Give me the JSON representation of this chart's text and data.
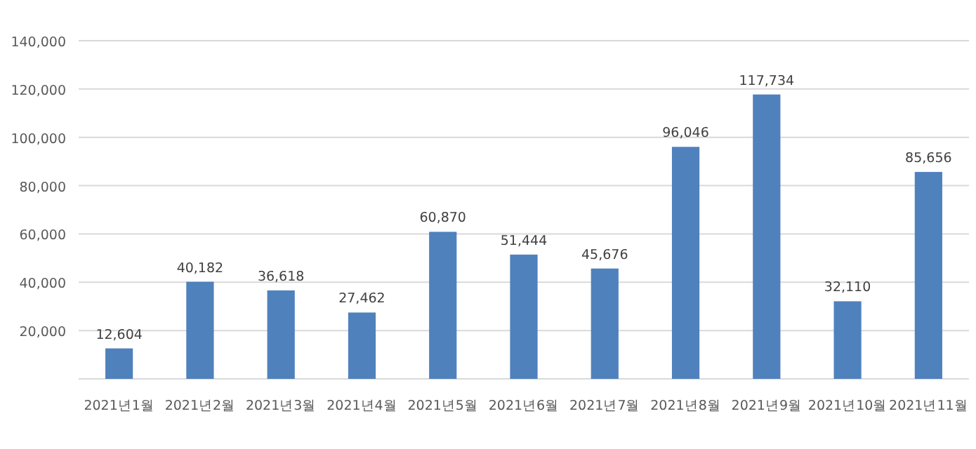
{
  "chart_data": {
    "type": "bar",
    "categories": [
      "2021년1월",
      "2021년2월",
      "2021년3월",
      "2021년4월",
      "2021년5월",
      "2021년6월",
      "2021년7월",
      "2021년8월",
      "2021년9월",
      "2021년10월",
      "2021년11월"
    ],
    "values": [
      12604,
      40182,
      36618,
      27462,
      60870,
      51444,
      45676,
      96046,
      117734,
      32110,
      85656
    ],
    "value_labels": [
      "12,604",
      "40,182",
      "36,618",
      "27,462",
      "60,870",
      "51,444",
      "45,676",
      "96,046",
      "117,734",
      "32,110",
      "85,656"
    ],
    "color": "#4f81bd",
    "ylim": [
      0,
      140000
    ],
    "yticks": [
      {
        "value": 0,
        "label": null
      },
      "20,000",
      "40,000",
      "60,000",
      "80,000",
      "100,000",
      "120,000",
      "140,000"
    ],
    "grid": "y"
  }
}
